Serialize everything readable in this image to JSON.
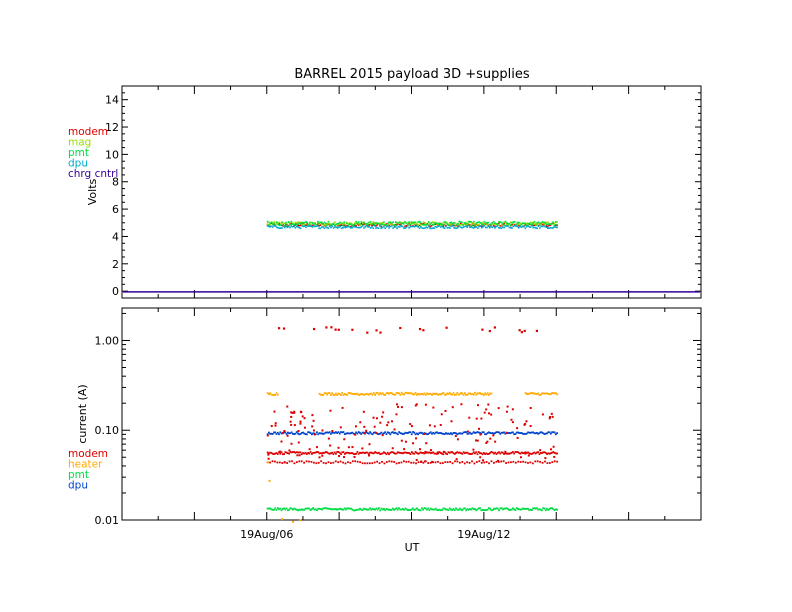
{
  "chart_data": [
    {
      "type": "scatter",
      "title": "BARREL 2015 payload 3D +supplies",
      "xlabel": "",
      "ylabel": "Volts",
      "ylim": [
        -0.5,
        15
      ],
      "yticks": [
        0,
        2,
        4,
        6,
        8,
        10,
        12,
        14
      ],
      "x_time_range_hours": [
        0,
        16
      ],
      "grid": false,
      "legend_placement": "left-outside",
      "series": [
        {
          "name": "modem",
          "color": "#dd0000",
          "y_mean": 4.9,
          "y_spread": 0.12,
          "x_span": [
            4.0,
            12.0
          ]
        },
        {
          "name": "mag",
          "color": "#99dd00",
          "y_mean": 5.0,
          "y_spread": 0.12,
          "x_span": [
            4.0,
            12.0
          ]
        },
        {
          "name": "pmt",
          "color": "#00dd44",
          "y_mean": 5.0,
          "y_spread": 0.15,
          "x_span": [
            4.0,
            12.0
          ]
        },
        {
          "name": "dpu",
          "color": "#00aacc",
          "y_mean": 4.75,
          "y_spread": 0.1,
          "x_span": [
            4.0,
            12.0
          ]
        },
        {
          "name": "chrg cntrl",
          "color": "#330099",
          "y_mean": -0.05,
          "y_spread": 0,
          "x_span": [
            0.0,
            16.0
          ]
        }
      ]
    },
    {
      "type": "scatter",
      "title": "",
      "xlabel": "UT",
      "ylabel": "current (A)",
      "yscale": "log",
      "ylim": [
        0.01,
        2.3
      ],
      "ytick_labels": [
        "0.01",
        "0.10",
        "1.00"
      ],
      "xtick_labels": [
        "19Aug/06",
        "19Aug/12"
      ],
      "xtick_hours": [
        4.0,
        10.0
      ],
      "x_time_range_hours": [
        0,
        16
      ],
      "grid": false,
      "legend_placement": "left-outside",
      "series": [
        {
          "name": "modem",
          "color": "#dd0000",
          "levels": [
            0.057,
            0.045
          ],
          "x_span": [
            4.0,
            12.0
          ]
        },
        {
          "name": "heater",
          "color": "#ffaa00",
          "levels": [
            0.26
          ],
          "x_span": [
            4.0,
            12.0
          ],
          "gaps": [
            [
              4.3,
              5.4
            ],
            [
              10.2,
              11.1
            ]
          ]
        },
        {
          "name": "pmt",
          "color": "#00dd44",
          "levels": [
            0.0135
          ],
          "x_span": [
            4.0,
            12.0
          ]
        },
        {
          "name": "dpu",
          "color": "#0044cc",
          "levels": [
            0.095
          ],
          "x_span": [
            4.0,
            12.0
          ]
        }
      ]
    }
  ]
}
